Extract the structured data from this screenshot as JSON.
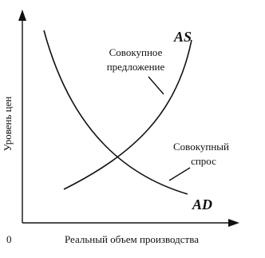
{
  "curves": {
    "as": {
      "label": "AS",
      "caption": [
        "Совокупное",
        "предложение"
      ]
    },
    "ad": {
      "label": "AD",
      "caption": [
        "Совокупный",
        "спрос"
      ]
    }
  },
  "axes": {
    "y_label": "Уровень цен",
    "x_label": "Реальный объем производства",
    "origin": "0"
  }
}
